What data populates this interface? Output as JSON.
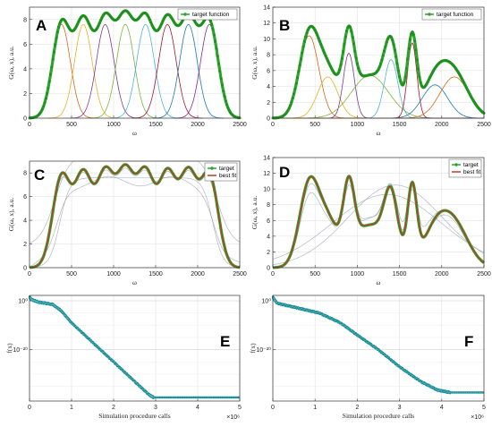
{
  "chart_data": [
    {
      "panel": "A",
      "type": "line",
      "xlabel": "ω",
      "ylabel": "G(ω, x), a.u.",
      "xlim": [
        0,
        2500
      ],
      "ylim": [
        0,
        9
      ],
      "xticks": [
        "0",
        "500",
        "1000",
        "1500",
        "2000",
        "2500"
      ],
      "yticks": [
        "0",
        "2",
        "4",
        "6",
        "8"
      ],
      "grid": true,
      "legend_position": "top-right",
      "legend": [
        "target function"
      ],
      "components": {
        "count": 8,
        "amplitude": 7.6,
        "centers": [
          380,
          640,
          900,
          1140,
          1380,
          1640,
          1890,
          2140
        ],
        "width": 105
      },
      "colors": {
        "target": "#2aa52a",
        "components": [
          "#d9661c",
          "#e3b322",
          "#7e3a93",
          "#7fb33a",
          "#4fb5d6",
          "#a4152b",
          "#1f77b4",
          "#7b2f8e"
        ]
      }
    },
    {
      "panel": "B",
      "type": "line",
      "xlabel": "ω",
      "ylabel": "G(ω, x), a.u.",
      "xlim": [
        0,
        2500
      ],
      "ylim": [
        0,
        14
      ],
      "xticks": [
        "0",
        "500",
        "1000",
        "1500",
        "2000",
        "2500"
      ],
      "yticks": [
        "0",
        "2",
        "4",
        "6",
        "8",
        "10",
        "12",
        "14"
      ],
      "grid": true,
      "legend_position": "top-right",
      "legend": [
        "target function"
      ],
      "components": [
        {
          "center": 430,
          "amplitude": 10.4,
          "width": 115,
          "color": "#d9661c"
        },
        {
          "center": 650,
          "amplitude": 5.2,
          "width": 120,
          "color": "#e3b322"
        },
        {
          "center": 900,
          "amplitude": 8.2,
          "width": 65,
          "color": "#7e3a93"
        },
        {
          "center": 1150,
          "amplitude": 5.4,
          "width": 220,
          "color": "#7fb33a"
        },
        {
          "center": 1400,
          "amplitude": 7.4,
          "width": 80,
          "color": "#4fb5d6"
        },
        {
          "center": 1650,
          "amplitude": 9.5,
          "width": 55,
          "color": "#a4152b"
        },
        {
          "center": 1920,
          "amplitude": 4.2,
          "width": 150,
          "color": "#1f77b4"
        },
        {
          "center": 2150,
          "amplitude": 5.2,
          "width": 170,
          "color": "#d9661c"
        }
      ]
    },
    {
      "panel": "C",
      "type": "line",
      "xlabel": "ω",
      "ylabel": "G(ω, x), a.u.",
      "xlim": [
        0,
        2500
      ],
      "ylim": [
        0,
        9
      ],
      "xticks": [
        "0",
        "500",
        "1000",
        "1500",
        "2000",
        "2500"
      ],
      "yticks": [
        "0",
        "2",
        "4",
        "6",
        "8"
      ],
      "grid": true,
      "legend_position": "top-right",
      "legend": [
        "target",
        "best fit"
      ],
      "colors": {
        "target": "#2aa52a",
        "best_fit": "#c0392b",
        "iterations": "#8a8fa8"
      }
    },
    {
      "panel": "D",
      "type": "line",
      "xlabel": "ω",
      "ylabel": "G(ω, x), a.u.",
      "xlim": [
        0,
        2500
      ],
      "ylim": [
        0,
        14
      ],
      "xticks": [
        "0",
        "500",
        "1000",
        "1500",
        "2000",
        "2500"
      ],
      "yticks": [
        "0",
        "2",
        "4",
        "6",
        "8",
        "10",
        "12",
        "14"
      ],
      "grid": true,
      "legend_position": "top-right",
      "legend": [
        "target",
        "best fit"
      ],
      "colors": {
        "target": "#2aa52a",
        "best_fit": "#c0392b",
        "iterations": "#8a8fa8"
      }
    },
    {
      "panel": "E",
      "type": "line",
      "scale_y": "log",
      "xlabel": "Simulation procedure calls",
      "ylabel": "f(x)",
      "xlim": [
        0,
        5
      ],
      "x_exponent": "×10⁶",
      "xticks": [
        "0",
        "1",
        "2",
        "3",
        "4",
        "5"
      ],
      "yticks": [
        "10⁰",
        "10⁻²⁰"
      ],
      "grid": true,
      "points_log10": [
        [
          0,
          1.5
        ],
        [
          0.05,
          0.5
        ],
        [
          0.2,
          -0.5
        ],
        [
          0.55,
          -1.5
        ],
        [
          0.75,
          -4
        ],
        [
          1.0,
          -9
        ],
        [
          1.5,
          -17
        ],
        [
          2.0,
          -25
        ],
        [
          2.5,
          -33
        ],
        [
          2.85,
          -38.5
        ],
        [
          2.95,
          -39.5
        ],
        [
          5,
          -39.5
        ]
      ],
      "color": "#1a8a92"
    },
    {
      "panel": "F",
      "type": "line",
      "scale_y": "log",
      "xlabel": "Simulation procedure calls",
      "ylabel": "f(x)",
      "xlim": [
        0,
        5
      ],
      "x_exponent": "×10⁶",
      "xticks": [
        "0",
        "1",
        "2",
        "3",
        "4",
        "5"
      ],
      "yticks": [
        "10⁰",
        "10⁻²⁰"
      ],
      "grid": true,
      "points_log10": [
        [
          0,
          1.5
        ],
        [
          0.1,
          -1
        ],
        [
          0.6,
          -3
        ],
        [
          1.1,
          -5
        ],
        [
          1.6,
          -9
        ],
        [
          2.0,
          -14
        ],
        [
          2.5,
          -20
        ],
        [
          3.0,
          -27
        ],
        [
          3.5,
          -33
        ],
        [
          3.9,
          -36.5
        ],
        [
          4.2,
          -37.5
        ],
        [
          5,
          -37.5
        ]
      ],
      "color": "#1a8a92"
    }
  ]
}
